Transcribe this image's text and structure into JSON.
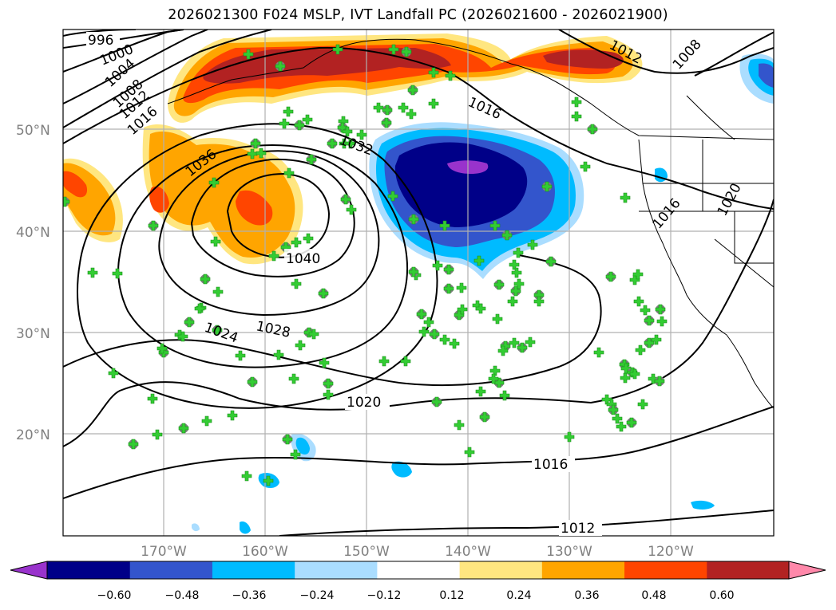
{
  "title": "2026021300 F024 MSLP, IVT Landfall PC (2026021600 - 2026021900)",
  "map": {
    "lon_labels": [
      "170°W",
      "160°W",
      "150°W",
      "140°W",
      "130°W",
      "120°W"
    ],
    "lat_labels": [
      "50°N",
      "40°N",
      "30°N",
      "20°N"
    ],
    "isobar_labels": [
      "996",
      "1000",
      "1004",
      "1008",
      "1012",
      "1016",
      "1036",
      "1032",
      "1040",
      "1024",
      "1028",
      "1020",
      "1016",
      "1012",
      "1012",
      "1008",
      "1016",
      "1016",
      "1020"
    ],
    "marker_color_fill": "#33cc33",
    "marker_color_circle": "#808080"
  },
  "colorbar": {
    "ticks": [
      "−0.60",
      "−0.48",
      "−0.36",
      "−0.24",
      "−0.12",
      "0.12",
      "0.24",
      "0.36",
      "0.48",
      "0.60"
    ],
    "colors": [
      "#9933cc",
      "#000088",
      "#3355cc",
      "#00bbff",
      "#aaddff",
      "#ffffff",
      "#ffe680",
      "#ffa500",
      "#ff4500",
      "#b22222",
      "#ff88aa"
    ]
  }
}
